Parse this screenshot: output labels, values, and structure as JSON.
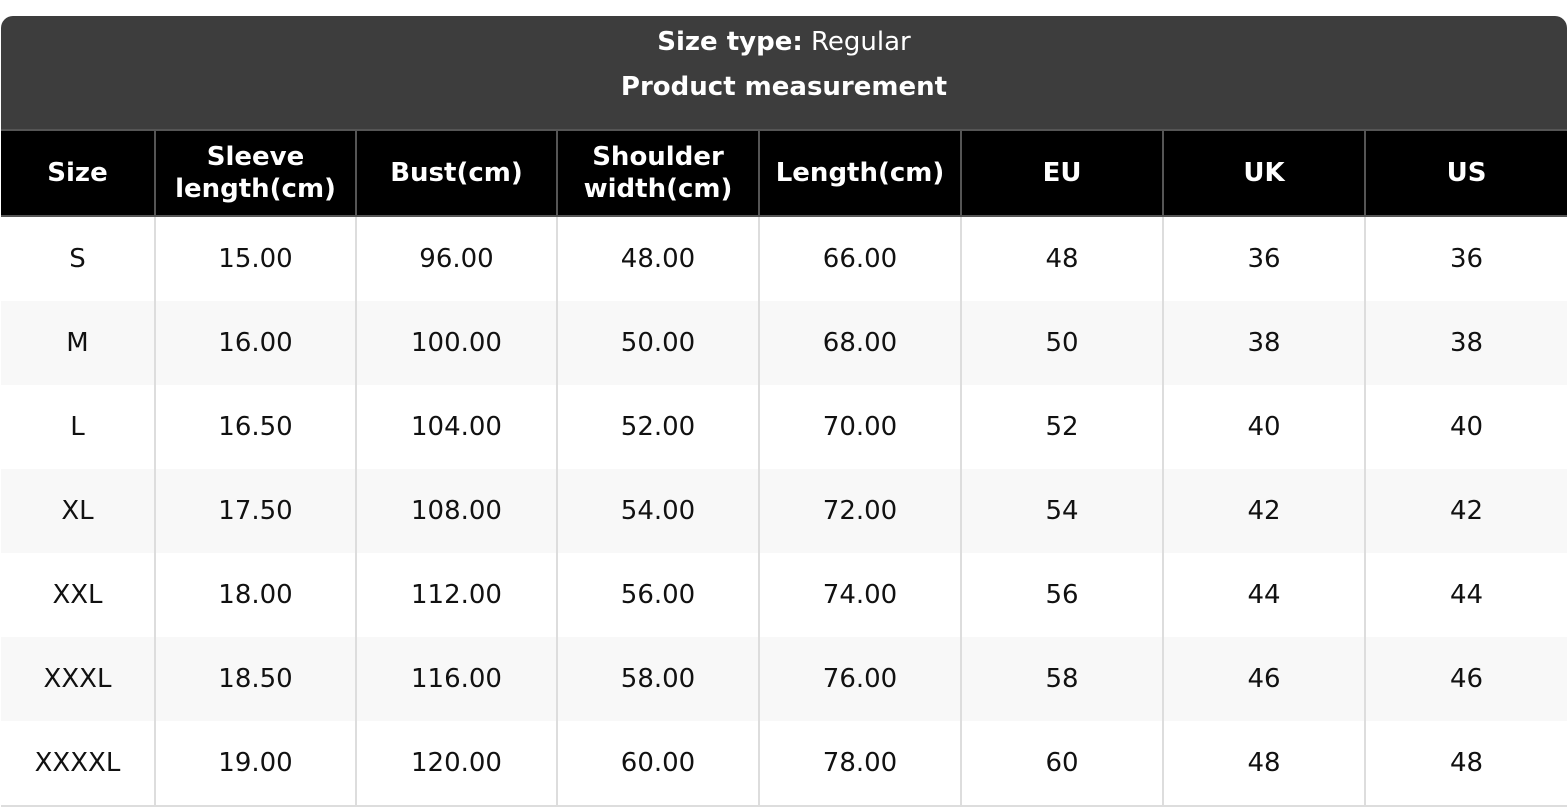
{
  "title": {
    "size_type_label": "Size type:",
    "size_type_value": "Regular",
    "subtitle": "Product measurement"
  },
  "columns": [
    "Size",
    "Sleeve length(cm)",
    "Bust(cm)",
    "Shoulder width(cm)",
    "Length(cm)",
    "EU",
    "UK",
    "US"
  ],
  "rows": [
    [
      "S",
      "15.00",
      "96.00",
      "48.00",
      "66.00",
      "48",
      "36",
      "36"
    ],
    [
      "M",
      "16.00",
      "100.00",
      "50.00",
      "68.00",
      "50",
      "38",
      "38"
    ],
    [
      "L",
      "16.50",
      "104.00",
      "52.00",
      "70.00",
      "52",
      "40",
      "40"
    ],
    [
      "XL",
      "17.50",
      "108.00",
      "54.00",
      "72.00",
      "54",
      "42",
      "42"
    ],
    [
      "XXL",
      "18.00",
      "112.00",
      "56.00",
      "74.00",
      "56",
      "44",
      "44"
    ],
    [
      "XXXL",
      "18.50",
      "116.00",
      "58.00",
      "76.00",
      "58",
      "46",
      "46"
    ],
    [
      "XXXXL",
      "19.00",
      "120.00",
      "60.00",
      "78.00",
      "60",
      "48",
      "48"
    ]
  ]
}
